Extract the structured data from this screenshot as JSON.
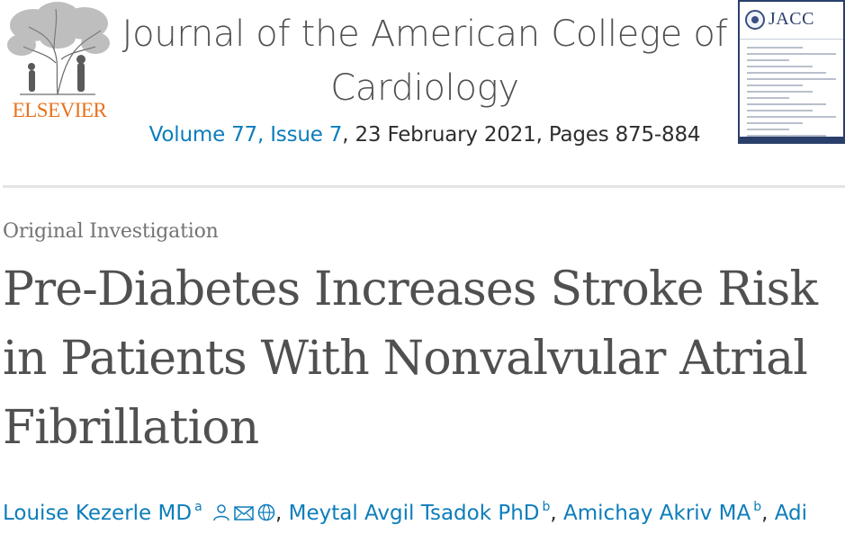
{
  "header": {
    "publisher": "ELSEVIER",
    "journal_title": "Journal of the American College of Cardiology",
    "volume_issue_link": "Volume 77, Issue 7",
    "issue_details": ", 23 February 2021, Pages 875-884",
    "cover_mark": "JACC"
  },
  "article": {
    "type": "Original Investigation",
    "title": "Pre-Diabetes Increases Stroke Risk in Patients With Nonvalvular Atrial Fibrillation"
  },
  "authors": [
    {
      "name": "Louise Kezerle MD",
      "affiliation": "a",
      "icons": [
        "person-icon",
        "email-icon",
        "globe-icon"
      ]
    },
    {
      "name": "Meytal Avgil Tsadok PhD",
      "affiliation": "b"
    },
    {
      "name": "Amichay Akriv MA",
      "affiliation": "b"
    },
    {
      "name": "Adi",
      "affiliation": ""
    }
  ],
  "colors": {
    "link": "#0c7dbb",
    "publisher_orange": "#e9711c",
    "text": "#505050"
  }
}
